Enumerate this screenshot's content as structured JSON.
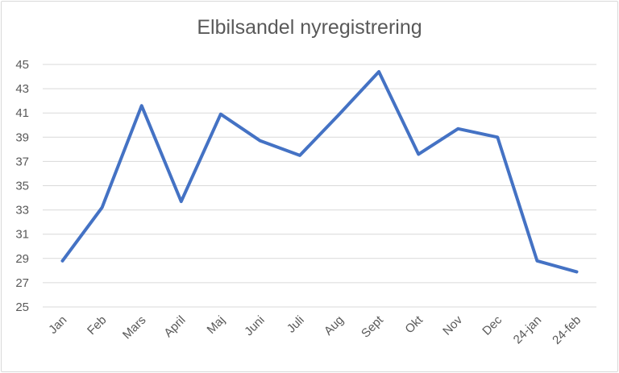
{
  "chart_data": {
    "type": "line",
    "title": "Elbilsandel nyregistrering",
    "xlabel": "",
    "ylabel": "",
    "categories": [
      "Jan",
      "Feb",
      "Mars",
      "April",
      "Maj",
      "Juni",
      "Juli",
      "Aug",
      "Sept",
      "Okt",
      "Nov",
      "Dec",
      "24-jan",
      "24-feb"
    ],
    "series": [
      {
        "values": [
          28.8,
          33.2,
          41.6,
          33.7,
          40.9,
          38.7,
          37.5,
          40.9,
          44.4,
          37.6,
          39.7,
          39.0,
          28.8,
          27.9
        ]
      }
    ],
    "ylim": [
      25,
      45
    ],
    "yticks": [
      25,
      27,
      29,
      31,
      33,
      35,
      37,
      39,
      41,
      43,
      45
    ],
    "grid": true,
    "legend": "none",
    "line_color": "#4472c4",
    "grid_color": "#d9d9d9"
  }
}
